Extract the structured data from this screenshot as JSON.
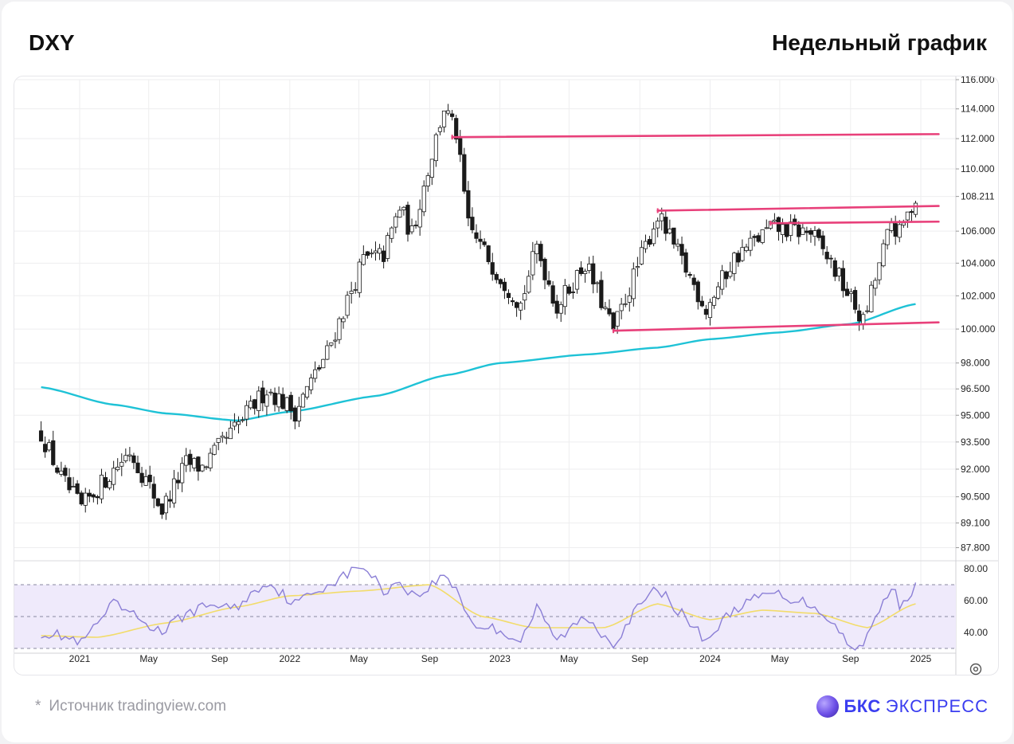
{
  "header": {
    "ticker": "DXY",
    "timeframe": "Недельный график"
  },
  "footer": {
    "star": "*",
    "source": "Источник tradingview.com",
    "brand_name": "БКС",
    "brand_sub": "ЭКСПРЕСС"
  },
  "colors": {
    "candle_up": "#ffffff",
    "candle_down": "#1a1a1a",
    "wick": "#1a1a1a",
    "ma": "#1ec2d6",
    "resistance": "#e8407a",
    "rsi": "#8b7fd6",
    "rsi_ma": "#f2dc6a",
    "rsi_band": "#efeafb",
    "grid": "#eeeeef"
  },
  "chart_data": [
    {
      "type": "candlestick",
      "title": "DXY",
      "x_tick_labels": [
        "2021",
        "May",
        "Sep",
        "2022",
        "May",
        "Sep",
        "2023",
        "May",
        "Sep",
        "2024",
        "May",
        "Sep",
        "2025"
      ],
      "x_tick_dates": [
        "2021-01-01",
        "2021-05-01",
        "2021-09-01",
        "2022-01-01",
        "2022-05-01",
        "2022-09-01",
        "2023-01-01",
        "2023-05-01",
        "2023-09-01",
        "2024-01-01",
        "2024-05-01",
        "2024-09-01",
        "2025-01-01"
      ],
      "y_tick_labels": [
        "116.000",
        "114.000",
        "112.000",
        "110.000",
        "108.211",
        "106.000",
        "104.000",
        "102.000",
        "100.000",
        "98.000",
        "96.500",
        "95.000",
        "93.500",
        "92.000",
        "90.500",
        "89.100",
        "87.800"
      ],
      "y_tick_values": [
        116.0,
        114.0,
        112.0,
        110.0,
        108.211,
        106.0,
        104.0,
        102.0,
        100.0,
        98.0,
        96.5,
        95.0,
        93.5,
        92.0,
        90.5,
        89.1,
        87.8
      ],
      "last_price": 108.211,
      "scale": "log",
      "ylim": [
        87.2,
        116.0
      ],
      "grid": true,
      "close_keypoints": [
        [
          "2020-10-26",
          94.0
        ],
        [
          "2020-11-30",
          91.5
        ],
        [
          "2021-01-04",
          89.9
        ],
        [
          "2021-03-29",
          93.0
        ],
        [
          "2021-05-24",
          89.8
        ],
        [
          "2021-07-05",
          92.3
        ],
        [
          "2021-08-02",
          92.1
        ],
        [
          "2021-09-27",
          94.2
        ],
        [
          "2021-11-22",
          96.5
        ],
        [
          "2022-01-10",
          95.2
        ],
        [
          "2022-03-07",
          98.6
        ],
        [
          "2022-05-09",
          104.2
        ],
        [
          "2022-06-13",
          104.5
        ],
        [
          "2022-07-11",
          107.5
        ],
        [
          "2022-08-01",
          105.8
        ],
        [
          "2022-09-26",
          114.1
        ],
        [
          "2022-10-17",
          112.3
        ],
        [
          "2022-11-07",
          106.3
        ],
        [
          "2022-12-26",
          103.5
        ],
        [
          "2023-02-06",
          101.5
        ],
        [
          "2023-03-06",
          105.0
        ],
        [
          "2023-04-10",
          101.3
        ],
        [
          "2023-05-29",
          104.0
        ],
        [
          "2023-07-17",
          99.9
        ],
        [
          "2023-10-02",
          107.0
        ],
        [
          "2023-12-25",
          101.2
        ],
        [
          "2024-02-12",
          104.3
        ],
        [
          "2024-04-15",
          106.2
        ],
        [
          "2024-06-24",
          105.9
        ],
        [
          "2024-07-29",
          104.0
        ],
        [
          "2024-09-23",
          100.4
        ],
        [
          "2024-11-11",
          106.5
        ],
        [
          "2024-11-25",
          105.8
        ],
        [
          "2024-12-23",
          108.2
        ]
      ],
      "moving_average": [
        [
          "2020-10-26",
          96.6
        ],
        [
          "2021-03-01",
          95.6
        ],
        [
          "2021-06-01",
          95.1
        ],
        [
          "2021-10-01",
          94.7
        ],
        [
          "2022-01-01",
          95.2
        ],
        [
          "2022-06-01",
          96.1
        ],
        [
          "2022-10-01",
          97.3
        ],
        [
          "2023-01-01",
          98.0
        ],
        [
          "2023-06-01",
          98.5
        ],
        [
          "2023-10-01",
          98.9
        ],
        [
          "2024-01-01",
          99.4
        ],
        [
          "2024-05-01",
          99.8
        ],
        [
          "2024-09-01",
          100.3
        ],
        [
          "2024-12-23",
          101.5
        ]
      ],
      "levels": [
        {
          "from": "2022-10-10",
          "to": "2025-02-01",
          "y_from": 112.1,
          "y_to": 112.3
        },
        {
          "from": "2023-10-02",
          "to": "2025-02-01",
          "y_from": 107.3,
          "y_to": 107.6
        },
        {
          "from": "2024-04-15",
          "to": "2025-02-01",
          "y_from": 106.5,
          "y_to": 106.6
        },
        {
          "from": "2023-07-17",
          "to": "2025-02-01",
          "y_from": 99.9,
          "y_to": 100.4
        }
      ]
    },
    {
      "type": "line",
      "title": "",
      "y_tick_labels": [
        "80.00",
        "60.00",
        "40.00"
      ],
      "y_tick_values": [
        80,
        60,
        40
      ],
      "ylim": [
        28,
        84
      ],
      "bands": [
        30,
        50,
        70
      ],
      "rsi_keypoints": [
        [
          "2020-10-26",
          40
        ],
        [
          "2020-11-30",
          38
        ],
        [
          "2021-01-04",
          33
        ],
        [
          "2021-03-01",
          58
        ],
        [
          "2021-05-24",
          40
        ],
        [
          "2021-07-05",
          52
        ],
        [
          "2021-08-23",
          58
        ],
        [
          "2021-09-27",
          55
        ],
        [
          "2021-11-22",
          72
        ],
        [
          "2022-01-10",
          58
        ],
        [
          "2022-03-07",
          70
        ],
        [
          "2022-05-09",
          82
        ],
        [
          "2022-06-13",
          66
        ],
        [
          "2022-07-11",
          72
        ],
        [
          "2022-08-08",
          62
        ],
        [
          "2022-09-26",
          76
        ],
        [
          "2022-10-17",
          68
        ],
        [
          "2022-11-14",
          45
        ],
        [
          "2022-12-26",
          42
        ],
        [
          "2023-02-06",
          35
        ],
        [
          "2023-03-06",
          55
        ],
        [
          "2023-04-10",
          35
        ],
        [
          "2023-05-29",
          50
        ],
        [
          "2023-07-17",
          33
        ],
        [
          "2023-08-28",
          55
        ],
        [
          "2023-10-02",
          68
        ],
        [
          "2023-12-25",
          35
        ],
        [
          "2024-02-12",
          55
        ],
        [
          "2024-04-15",
          65
        ],
        [
          "2024-06-24",
          58
        ],
        [
          "2024-07-29",
          48
        ],
        [
          "2024-09-02",
          30
        ],
        [
          "2024-09-23",
          32
        ],
        [
          "2024-11-11",
          70
        ],
        [
          "2024-11-25",
          58
        ],
        [
          "2024-12-23",
          68
        ]
      ],
      "rsi_ma_keypoints": [
        [
          "2020-10-26",
          38
        ],
        [
          "2021-02-01",
          37
        ],
        [
          "2021-06-01",
          46
        ],
        [
          "2021-10-01",
          56
        ],
        [
          "2022-01-01",
          63
        ],
        [
          "2022-05-01",
          66
        ],
        [
          "2022-09-01",
          70
        ],
        [
          "2022-12-01",
          50
        ],
        [
          "2023-03-01",
          43
        ],
        [
          "2023-07-01",
          43
        ],
        [
          "2023-10-01",
          58
        ],
        [
          "2024-01-01",
          48
        ],
        [
          "2024-04-01",
          54
        ],
        [
          "2024-07-01",
          52
        ],
        [
          "2024-10-01",
          43
        ],
        [
          "2024-12-23",
          58
        ]
      ]
    }
  ]
}
